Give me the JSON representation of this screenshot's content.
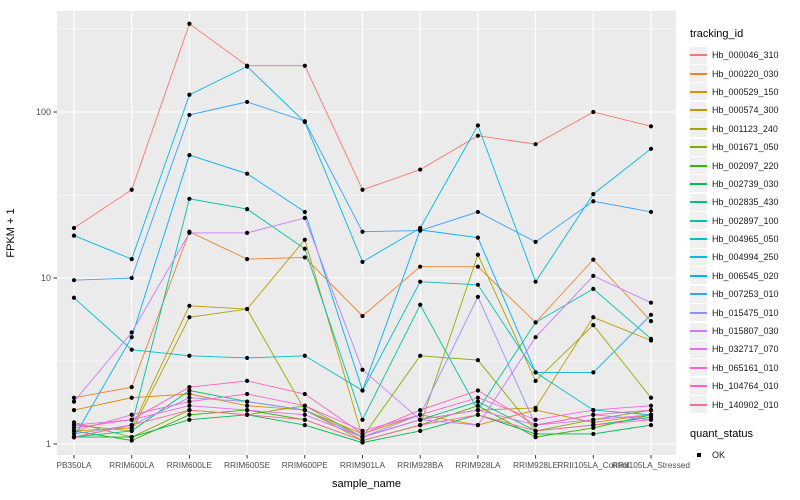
{
  "chart_data": {
    "type": "line",
    "title": "",
    "xlabel": "sample_name",
    "ylabel": "FPKM + 1",
    "y_scale": "log10",
    "y_ticks": [
      1,
      10,
      100
    ],
    "y_minor_ticks": [
      3.162,
      31.62,
      316.2
    ],
    "ylim": [
      0.93,
      420
    ],
    "grid": "on",
    "panel_bg": "#EBEBEB",
    "grid_color": "#FFFFFF",
    "point_color": "#000000",
    "legend_position": "right",
    "legend_title": "tracking_id",
    "legend2_title": "quant_status",
    "legend2_items": [
      {
        "label": "OK",
        "marker": "black-square"
      }
    ],
    "categories": [
      "PB350LA",
      "RRIM600LA",
      "RRIM600LE",
      "RRIM600SE",
      "RRIM600PE",
      "RRIM901LA",
      "RRIM928BA",
      "RRIM928LA",
      "RRIM928LE",
      "RRII105LA_Control",
      "RRII105LA_Stressed"
    ],
    "series": [
      {
        "name": "Hb_000046_310",
        "color": "#F8766D",
        "values": [
          20,
          34,
          340,
          190,
          190,
          34,
          45,
          72,
          64,
          100,
          82
        ]
      },
      {
        "name": "Hb_000220_030",
        "color": "#EA8331",
        "values": [
          1.9,
          2.2,
          19,
          13,
          13.3,
          5.9,
          11.7,
          11.7,
          5.4,
          12.9,
          5.5
        ]
      },
      {
        "name": "Hb_000529_150",
        "color": "#D89000",
        "values": [
          1.6,
          1.9,
          2.0,
          1.7,
          1.6,
          1.15,
          1.5,
          1.3,
          1.6,
          1.35,
          1.5
        ]
      },
      {
        "name": "Hb_000574_300",
        "color": "#C09B00",
        "values": [
          1.2,
          1.25,
          6.8,
          6.5,
          17,
          1.1,
          1.4,
          1.6,
          1.65,
          5.8,
          4.2
        ]
      },
      {
        "name": "Hb_001123_240",
        "color": "#A3A500",
        "values": [
          1.3,
          1.2,
          5.8,
          6.5,
          1.6,
          1.05,
          1.3,
          13.8,
          2.4,
          5.2,
          1.9
        ]
      },
      {
        "name": "Hb_001671_050",
        "color": "#7CAE00",
        "values": [
          1.35,
          1.1,
          1.6,
          1.5,
          1.7,
          1.1,
          3.4,
          3.2,
          1.2,
          1.4,
          1.6
        ]
      },
      {
        "name": "Hb_002097_220",
        "color": "#39B600",
        "values": [
          1.2,
          1.05,
          1.5,
          1.6,
          1.4,
          1.05,
          1.3,
          1.7,
          1.1,
          1.25,
          1.5
        ]
      },
      {
        "name": "Hb_002739_030",
        "color": "#00BB4E",
        "values": [
          1.1,
          1.1,
          1.4,
          1.5,
          1.3,
          1.02,
          1.2,
          1.5,
          1.15,
          1.15,
          1.3
        ]
      },
      {
        "name": "Hb_002835_430",
        "color": "#00BF7D",
        "values": [
          1.1,
          1.2,
          2.1,
          1.8,
          1.6,
          1.1,
          1.4,
          1.8,
          1.2,
          1.3,
          1.45
        ]
      },
      {
        "name": "Hb_002897_100",
        "color": "#00C1A3",
        "values": [
          1.1,
          1.3,
          30,
          26,
          15,
          1.4,
          6.9,
          1.6,
          5.4,
          8.6,
          4.3
        ]
      },
      {
        "name": "Hb_004965_050",
        "color": "#00BFC4",
        "values": [
          7.6,
          3.7,
          3.4,
          3.3,
          3.4,
          2.1,
          9.5,
          9.1,
          2.7,
          1.6,
          1.5
        ]
      },
      {
        "name": "Hb_004994_250",
        "color": "#00BAE0",
        "values": [
          18,
          13,
          127,
          188,
          87,
          12.5,
          20,
          83,
          9.5,
          32,
          60
        ]
      },
      {
        "name": "Hb_006545_020",
        "color": "#00B0F6",
        "values": [
          1.1,
          4.4,
          55,
          42.5,
          25,
          2.1,
          19.5,
          17.5,
          2.7,
          2.7,
          6.0
        ]
      },
      {
        "name": "Hb_007253_010",
        "color": "#35A2FF",
        "values": [
          9.7,
          10,
          96,
          115,
          88,
          19,
          19.3,
          25,
          16.5,
          29,
          25
        ]
      },
      {
        "name": "Hb_015475_010",
        "color": "#9590FF",
        "values": [
          1.15,
          1.3,
          1.9,
          1.8,
          1.6,
          1.1,
          1.5,
          7.7,
          1.3,
          1.5,
          1.4
        ]
      },
      {
        "name": "Hb_015807_030",
        "color": "#C77CFF",
        "values": [
          1.8,
          4.7,
          18.7,
          18.7,
          23,
          2.8,
          1.4,
          1.3,
          4.4,
          10.3,
          7.1
        ]
      },
      {
        "name": "Hb_032717_070",
        "color": "#E76BF3",
        "values": [
          1.3,
          1.4,
          1.7,
          1.6,
          1.5,
          1.1,
          1.4,
          1.6,
          1.3,
          1.4,
          1.5
        ]
      },
      {
        "name": "Hb_065161_010",
        "color": "#FA62DB",
        "values": [
          1.2,
          1.5,
          1.8,
          2.0,
          1.7,
          1.2,
          1.5,
          1.9,
          1.4,
          1.6,
          1.7
        ]
      },
      {
        "name": "Hb_104764_010",
        "color": "#FF62BC",
        "values": [
          1.25,
          1.4,
          2.2,
          2.4,
          2.0,
          1.15,
          1.6,
          2.1,
          1.3,
          1.5,
          1.6
        ]
      },
      {
        "name": "Hb_140902_010",
        "color": "#FF6A98",
        "values": [
          1.1,
          1.3,
          1.6,
          1.5,
          1.4,
          1.05,
          1.3,
          1.5,
          1.2,
          1.3,
          1.4
        ]
      }
    ]
  }
}
